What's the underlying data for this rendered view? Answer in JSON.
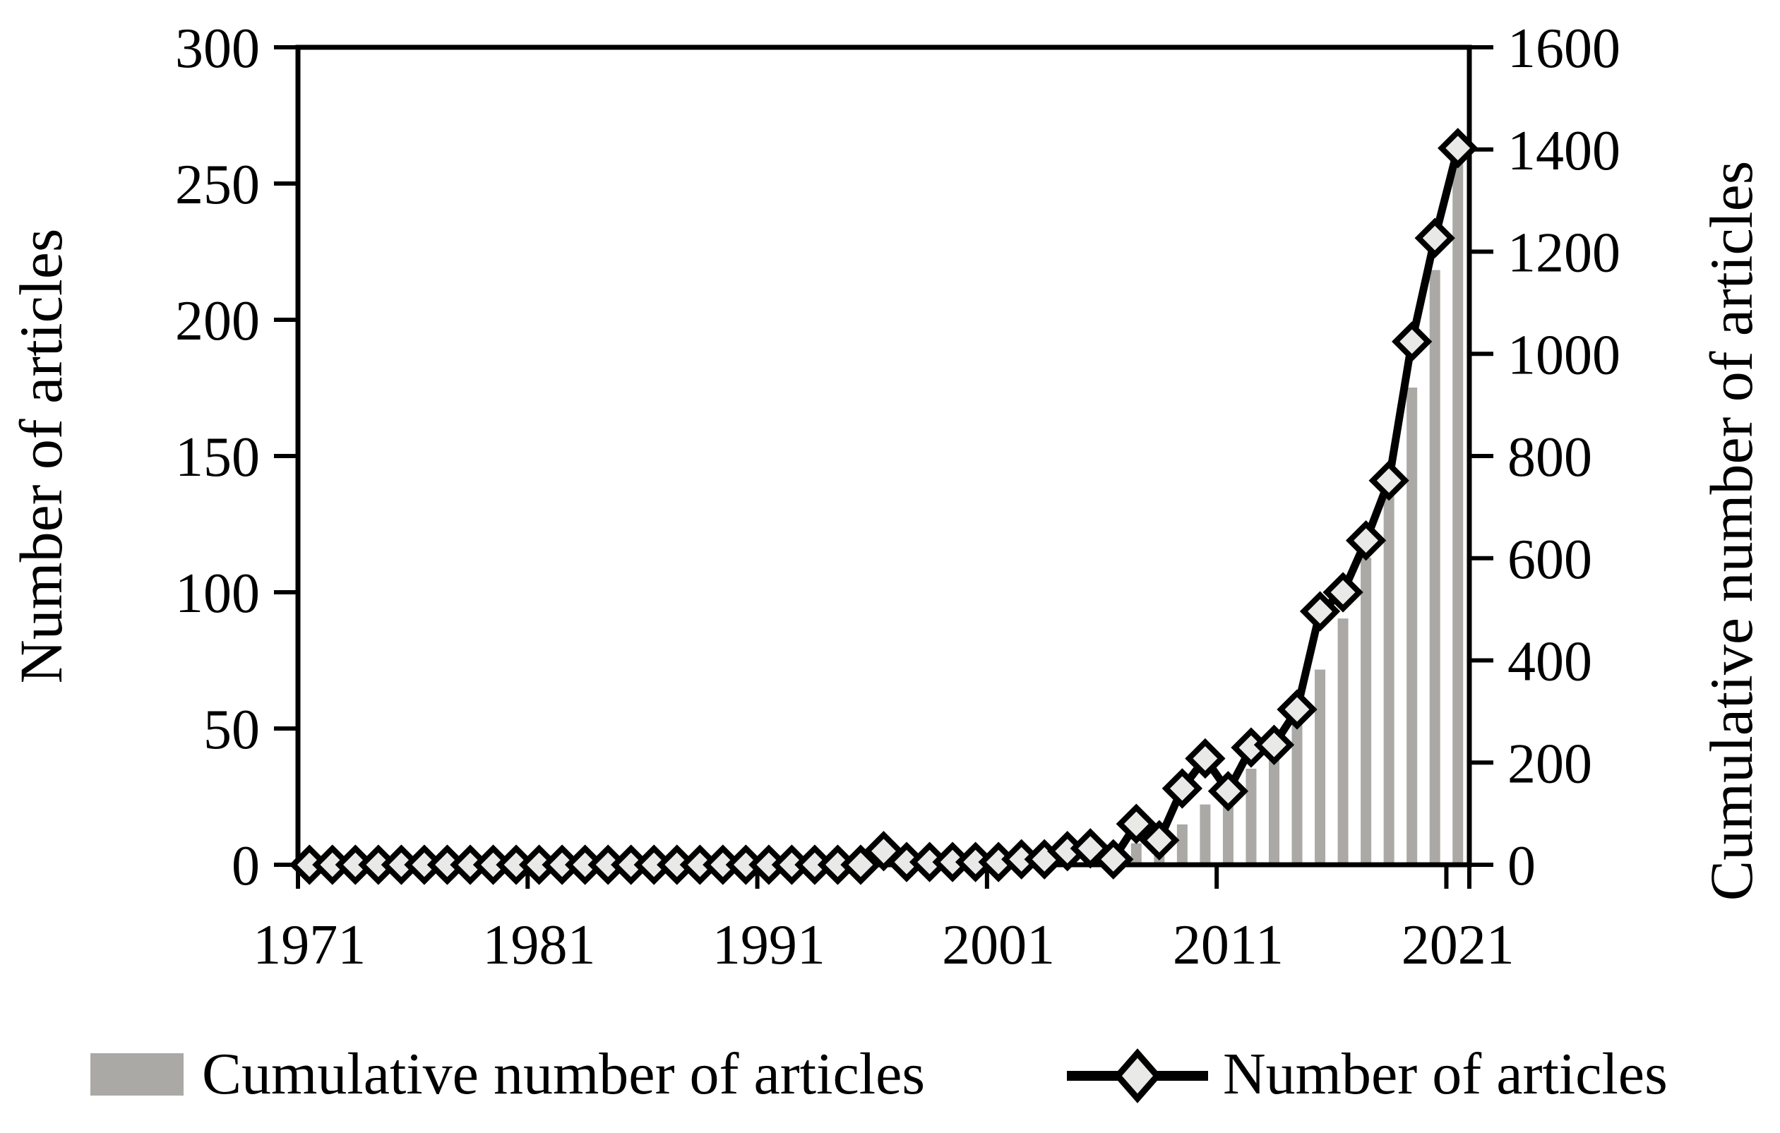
{
  "figure": {
    "left_axis_title": "Number of articles",
    "right_axis_title": "Cumulative number of articles",
    "legend": [
      {
        "swatch": "gray-bar",
        "label": "Cumulative number of articles"
      },
      {
        "swatch": "diamond-line",
        "label": "Number of articles"
      }
    ]
  },
  "colors": {
    "bar": "#ABA9A6",
    "line": "#000000",
    "marker_fill": "#E9E9E8",
    "axis": "#000000"
  },
  "chart_data": {
    "type": "bar",
    "subtype": "combo-bar-line-dual-axis",
    "title": "",
    "xlabel": "",
    "categories": [
      1971,
      1972,
      1973,
      1974,
      1975,
      1976,
      1977,
      1978,
      1979,
      1980,
      1981,
      1982,
      1983,
      1984,
      1985,
      1986,
      1987,
      1988,
      1989,
      1990,
      1991,
      1992,
      1993,
      1994,
      1995,
      1996,
      1997,
      1998,
      1999,
      2000,
      2001,
      2002,
      2003,
      2004,
      2005,
      2006,
      2007,
      2008,
      2009,
      2010,
      2011,
      2012,
      2013,
      2014,
      2015,
      2016,
      2017,
      2018,
      2019,
      2020,
      2021
    ],
    "series": [
      {
        "name": "Cumulative number of articles",
        "type": "bar",
        "axis": "right",
        "color": "#ABA9A6",
        "values": [
          0,
          0,
          0,
          0,
          0,
          0,
          0,
          0,
          0,
          0,
          0,
          0,
          0,
          0,
          0,
          0,
          0,
          0,
          0,
          0,
          0,
          0,
          0,
          0,
          0,
          5,
          6,
          7,
          8,
          9,
          10,
          12,
          14,
          19,
          25,
          27,
          42,
          51,
          79,
          118,
          145,
          188,
          232,
          289,
          382,
          482,
          601,
          742,
          934,
          1164,
          1427
        ]
      },
      {
        "name": "Number of articles",
        "type": "line",
        "axis": "left",
        "color": "#000000",
        "marker": "diamond",
        "marker_fill": "#E9E9E8",
        "values": [
          0,
          0,
          0,
          0,
          0,
          0,
          0,
          0,
          0,
          0,
          0,
          0,
          0,
          0,
          0,
          0,
          0,
          0,
          0,
          0,
          0,
          0,
          0,
          0,
          0,
          5,
          1,
          1,
          1,
          1,
          1,
          2,
          2,
          5,
          6,
          2,
          15,
          9,
          28,
          39,
          27,
          43,
          44,
          57,
          93,
          100,
          119,
          141,
          192,
          230,
          263
        ]
      }
    ],
    "left_axis": {
      "label": "Number of articles",
      "min": 0,
      "max": 300,
      "ticks": [
        0,
        50,
        100,
        150,
        200,
        250,
        300
      ]
    },
    "right_axis": {
      "label": "Cumulative number of articles",
      "min": 0,
      "max": 1600,
      "ticks": [
        0,
        200,
        400,
        600,
        800,
        1000,
        1200,
        1400,
        1600
      ]
    },
    "x_axis": {
      "tick_labels": [
        1971,
        1981,
        1991,
        2001,
        2011,
        2021
      ],
      "ticks_at": "category-boundaries"
    },
    "grid": false,
    "legend_position": "bottom"
  }
}
